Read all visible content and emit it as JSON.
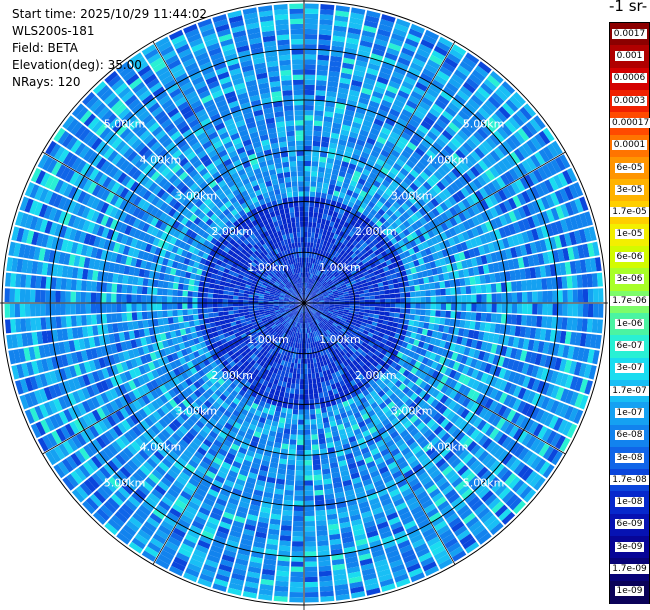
{
  "header": {
    "start_time": "Start time: 2025/10/29 11:44:02",
    "station": "WLS200s-181",
    "field": "Field: BETA",
    "elevation": "Elevation(deg): 35.00",
    "nrays": "NRays: 120"
  },
  "colorbar": {
    "title": "-1 sr-",
    "labels": [
      "0.0017",
      "0.001",
      "0.0006",
      "0.0003",
      "0.00017",
      "0.0001",
      "6e-05",
      "3e-05",
      "1.7e-05",
      "1e-05",
      "6e-06",
      "3e-06",
      "1.7e-06",
      "1e-06",
      "6e-07",
      "3e-07",
      "1.7e-07",
      "1e-07",
      "6e-08",
      "3e-08",
      "1.7e-08",
      "1e-08",
      "6e-09",
      "3e-09",
      "1.7e-09",
      "1e-09"
    ],
    "colors": [
      "#8b0000",
      "#b00000",
      "#d40000",
      "#f02000",
      "#ff4a00",
      "#ff7400",
      "#ff9500",
      "#ffb300",
      "#ffcf00",
      "#f3ef00",
      "#d2fb00",
      "#a8ff28",
      "#7dfc6a",
      "#4bf4a2",
      "#29f0d4",
      "#1adcf0",
      "#19bff5",
      "#15a1f2",
      "#1283ee",
      "#1065e8",
      "#0b46dc",
      "#0628cc",
      "#0612b3",
      "#070597",
      "#080378",
      "#0a0259"
    ]
  },
  "chart_data": {
    "type": "ppi",
    "field": "BETA",
    "rings": [
      {
        "range_km": 1,
        "label": "1.00km"
      },
      {
        "range_km": 2,
        "label": "2.00km"
      },
      {
        "range_km": 3,
        "label": "3.00km"
      },
      {
        "range_km": 4,
        "label": "4.00km"
      },
      {
        "range_km": 5,
        "label": "5.00km"
      }
    ],
    "max_range_km": 5.95,
    "nrays": 120,
    "azimuth_lines_deg": [
      0,
      30,
      60,
      90,
      120,
      150,
      180,
      210,
      240,
      270,
      300,
      330
    ]
  }
}
